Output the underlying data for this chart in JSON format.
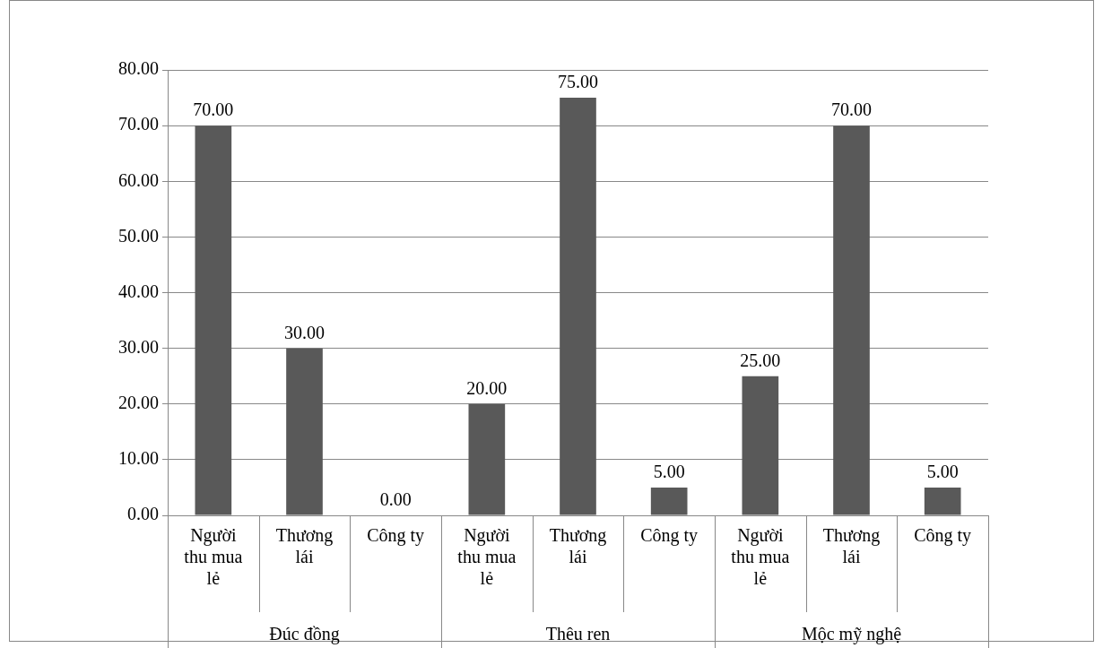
{
  "chart_data": {
    "type": "bar",
    "categories": [
      "Người thu mua lẻ",
      "Thương lái",
      "Công ty",
      "Người thu mua lẻ",
      "Thương lái",
      "Công ty",
      "Người thu mua lẻ",
      "Thương lái",
      "Công ty"
    ],
    "values": [
      70,
      30,
      0,
      20,
      75,
      5,
      25,
      70,
      5
    ],
    "value_labels": [
      "70.00",
      "30.00",
      "0.00",
      "20.00",
      "75.00",
      "5.00",
      "25.00",
      "70.00",
      "5.00"
    ],
    "color": "#595959",
    "ylim": [
      0,
      80
    ],
    "yticks": [
      {
        "value": 0,
        "label": "0.00"
      },
      {
        "value": 10,
        "label": "10.00"
      },
      {
        "value": 20,
        "label": "20.00"
      },
      {
        "value": 30,
        "label": "30.00"
      },
      {
        "value": 40,
        "label": "40.00"
      },
      {
        "value": 50,
        "label": "50.00"
      },
      {
        "value": 60,
        "label": "60.00"
      },
      {
        "value": 70,
        "label": "70.00"
      },
      {
        "value": 80,
        "label": "80.00"
      }
    ],
    "grid": "y",
    "annotations": [
      "Đúc đồng",
      "Thêu ren",
      "Mộc mỹ nghệ"
    ]
  }
}
